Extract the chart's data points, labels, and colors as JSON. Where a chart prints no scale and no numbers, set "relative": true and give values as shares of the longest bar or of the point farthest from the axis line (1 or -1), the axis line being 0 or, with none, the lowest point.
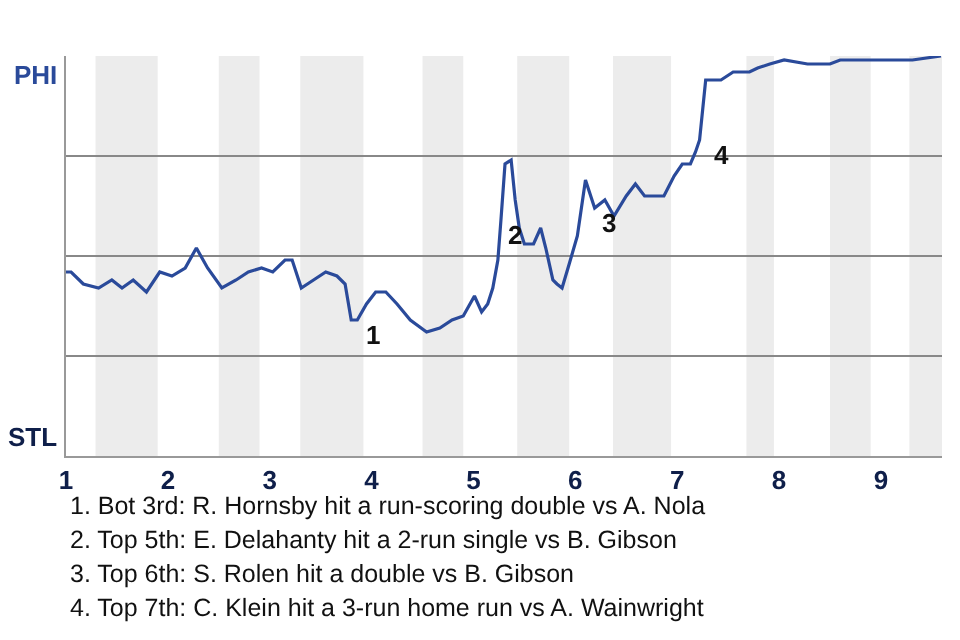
{
  "chart_data": {
    "type": "line",
    "relative": true,
    "x": [
      1,
      1.05,
      1.17,
      1.32,
      1.45,
      1.55,
      1.66,
      1.79,
      1.92,
      2.04,
      2.17,
      2.28,
      2.39,
      2.53,
      2.67,
      2.79,
      2.92,
      3.03,
      3.15,
      3.22,
      3.31,
      3.43,
      3.55,
      3.66,
      3.74,
      3.8,
      3.86,
      3.95,
      4.04,
      4.14,
      4.25,
      4.38,
      4.54,
      4.67,
      4.79,
      4.9,
      5.01,
      5.08,
      5.14,
      5.19,
      5.24,
      5.27,
      5.31,
      5.37,
      5.41,
      5.45,
      5.5,
      5.59,
      5.66,
      5.71,
      5.78,
      5.82,
      5.87,
      5.94,
      6.02,
      6.1,
      6.19,
      6.29,
      6.38,
      6.5,
      6.59,
      6.68,
      6.87,
      6.97,
      7.05,
      7.13,
      7.18,
      7.22,
      7.28,
      7.43,
      7.55,
      7.71,
      7.79,
      7.91,
      8.05,
      8.28,
      8.5,
      8.6,
      8.72,
      8.92,
      9.31,
      9.59
    ],
    "series": [
      {
        "color": "#2a4a9a",
        "values": [
          0.46,
          0.46,
          0.43,
          0.42,
          0.44,
          0.42,
          0.44,
          0.41,
          0.46,
          0.45,
          0.47,
          0.52,
          0.47,
          0.42,
          0.44,
          0.46,
          0.47,
          0.46,
          0.49,
          0.49,
          0.42,
          0.44,
          0.46,
          0.45,
          0.43,
          0.34,
          0.34,
          0.38,
          0.41,
          0.41,
          0.38,
          0.34,
          0.31,
          0.32,
          0.34,
          0.35,
          0.4,
          0.36,
          0.38,
          0.42,
          0.49,
          0.59,
          0.73,
          0.74,
          0.64,
          0.57,
          0.53,
          0.53,
          0.57,
          0.52,
          0.44,
          0.43,
          0.42,
          0.48,
          0.55,
          0.69,
          0.62,
          0.64,
          0.6,
          0.65,
          0.68,
          0.65,
          0.65,
          0.7,
          0.73,
          0.73,
          0.76,
          0.79,
          0.94,
          0.94,
          0.96,
          0.96,
          0.97,
          0.98,
          0.99,
          0.98,
          0.98,
          0.99,
          0.99,
          0.99,
          0.99,
          1
        ]
      }
    ],
    "xlim": [
      1,
      9.6
    ],
    "xticks": [
      1,
      2,
      3,
      4,
      5,
      6,
      7,
      8,
      9
    ],
    "grid": "y",
    "marker": "none",
    "line_style": "solid",
    "bands": [
      {
        "axis": "x",
        "from": 1.29,
        "to": 1.9,
        "color": "#ececec"
      },
      {
        "axis": "x",
        "from": 2.5,
        "to": 2.9,
        "color": "#ececec"
      },
      {
        "axis": "x",
        "from": 3.3,
        "to": 3.92,
        "color": "#ececec"
      },
      {
        "axis": "x",
        "from": 4.5,
        "to": 4.9,
        "color": "#ececec"
      },
      {
        "axis": "x",
        "from": 5.43,
        "to": 5.94,
        "color": "#ececec"
      },
      {
        "axis": "x",
        "from": 6.37,
        "to": 6.94,
        "color": "#ececec"
      },
      {
        "axis": "x",
        "from": 7.68,
        "to": 7.95,
        "color": "#ececec"
      },
      {
        "axis": "x",
        "from": 8.5,
        "to": 8.9,
        "color": "#ececec"
      },
      {
        "axis": "x",
        "from": 9.28,
        "to": 9.6,
        "color": "#ececec"
      }
    ],
    "annotations": [
      "PHI",
      "STL",
      {
        "text": "1",
        "x": 3.86,
        "y": 0.34
      },
      {
        "text": "2",
        "x": 5.27,
        "y": 0.59
      },
      {
        "text": "3",
        "x": 6.19,
        "y": 0.62
      },
      {
        "text": "4",
        "x": 7.28,
        "y": 0.79
      },
      "1. Bot 3rd: R. Hornsby hit a run-scoring double vs A. Nola",
      "2. Top 5th: E. Delahanty hit a 2-run single vs B. Gibson",
      "3. Top 6th: S. Rolen hit a double vs B. Gibson",
      "4. Top 7th: C. Klein hit a 3-run home run vs A. Wainwright"
    ]
  }
}
